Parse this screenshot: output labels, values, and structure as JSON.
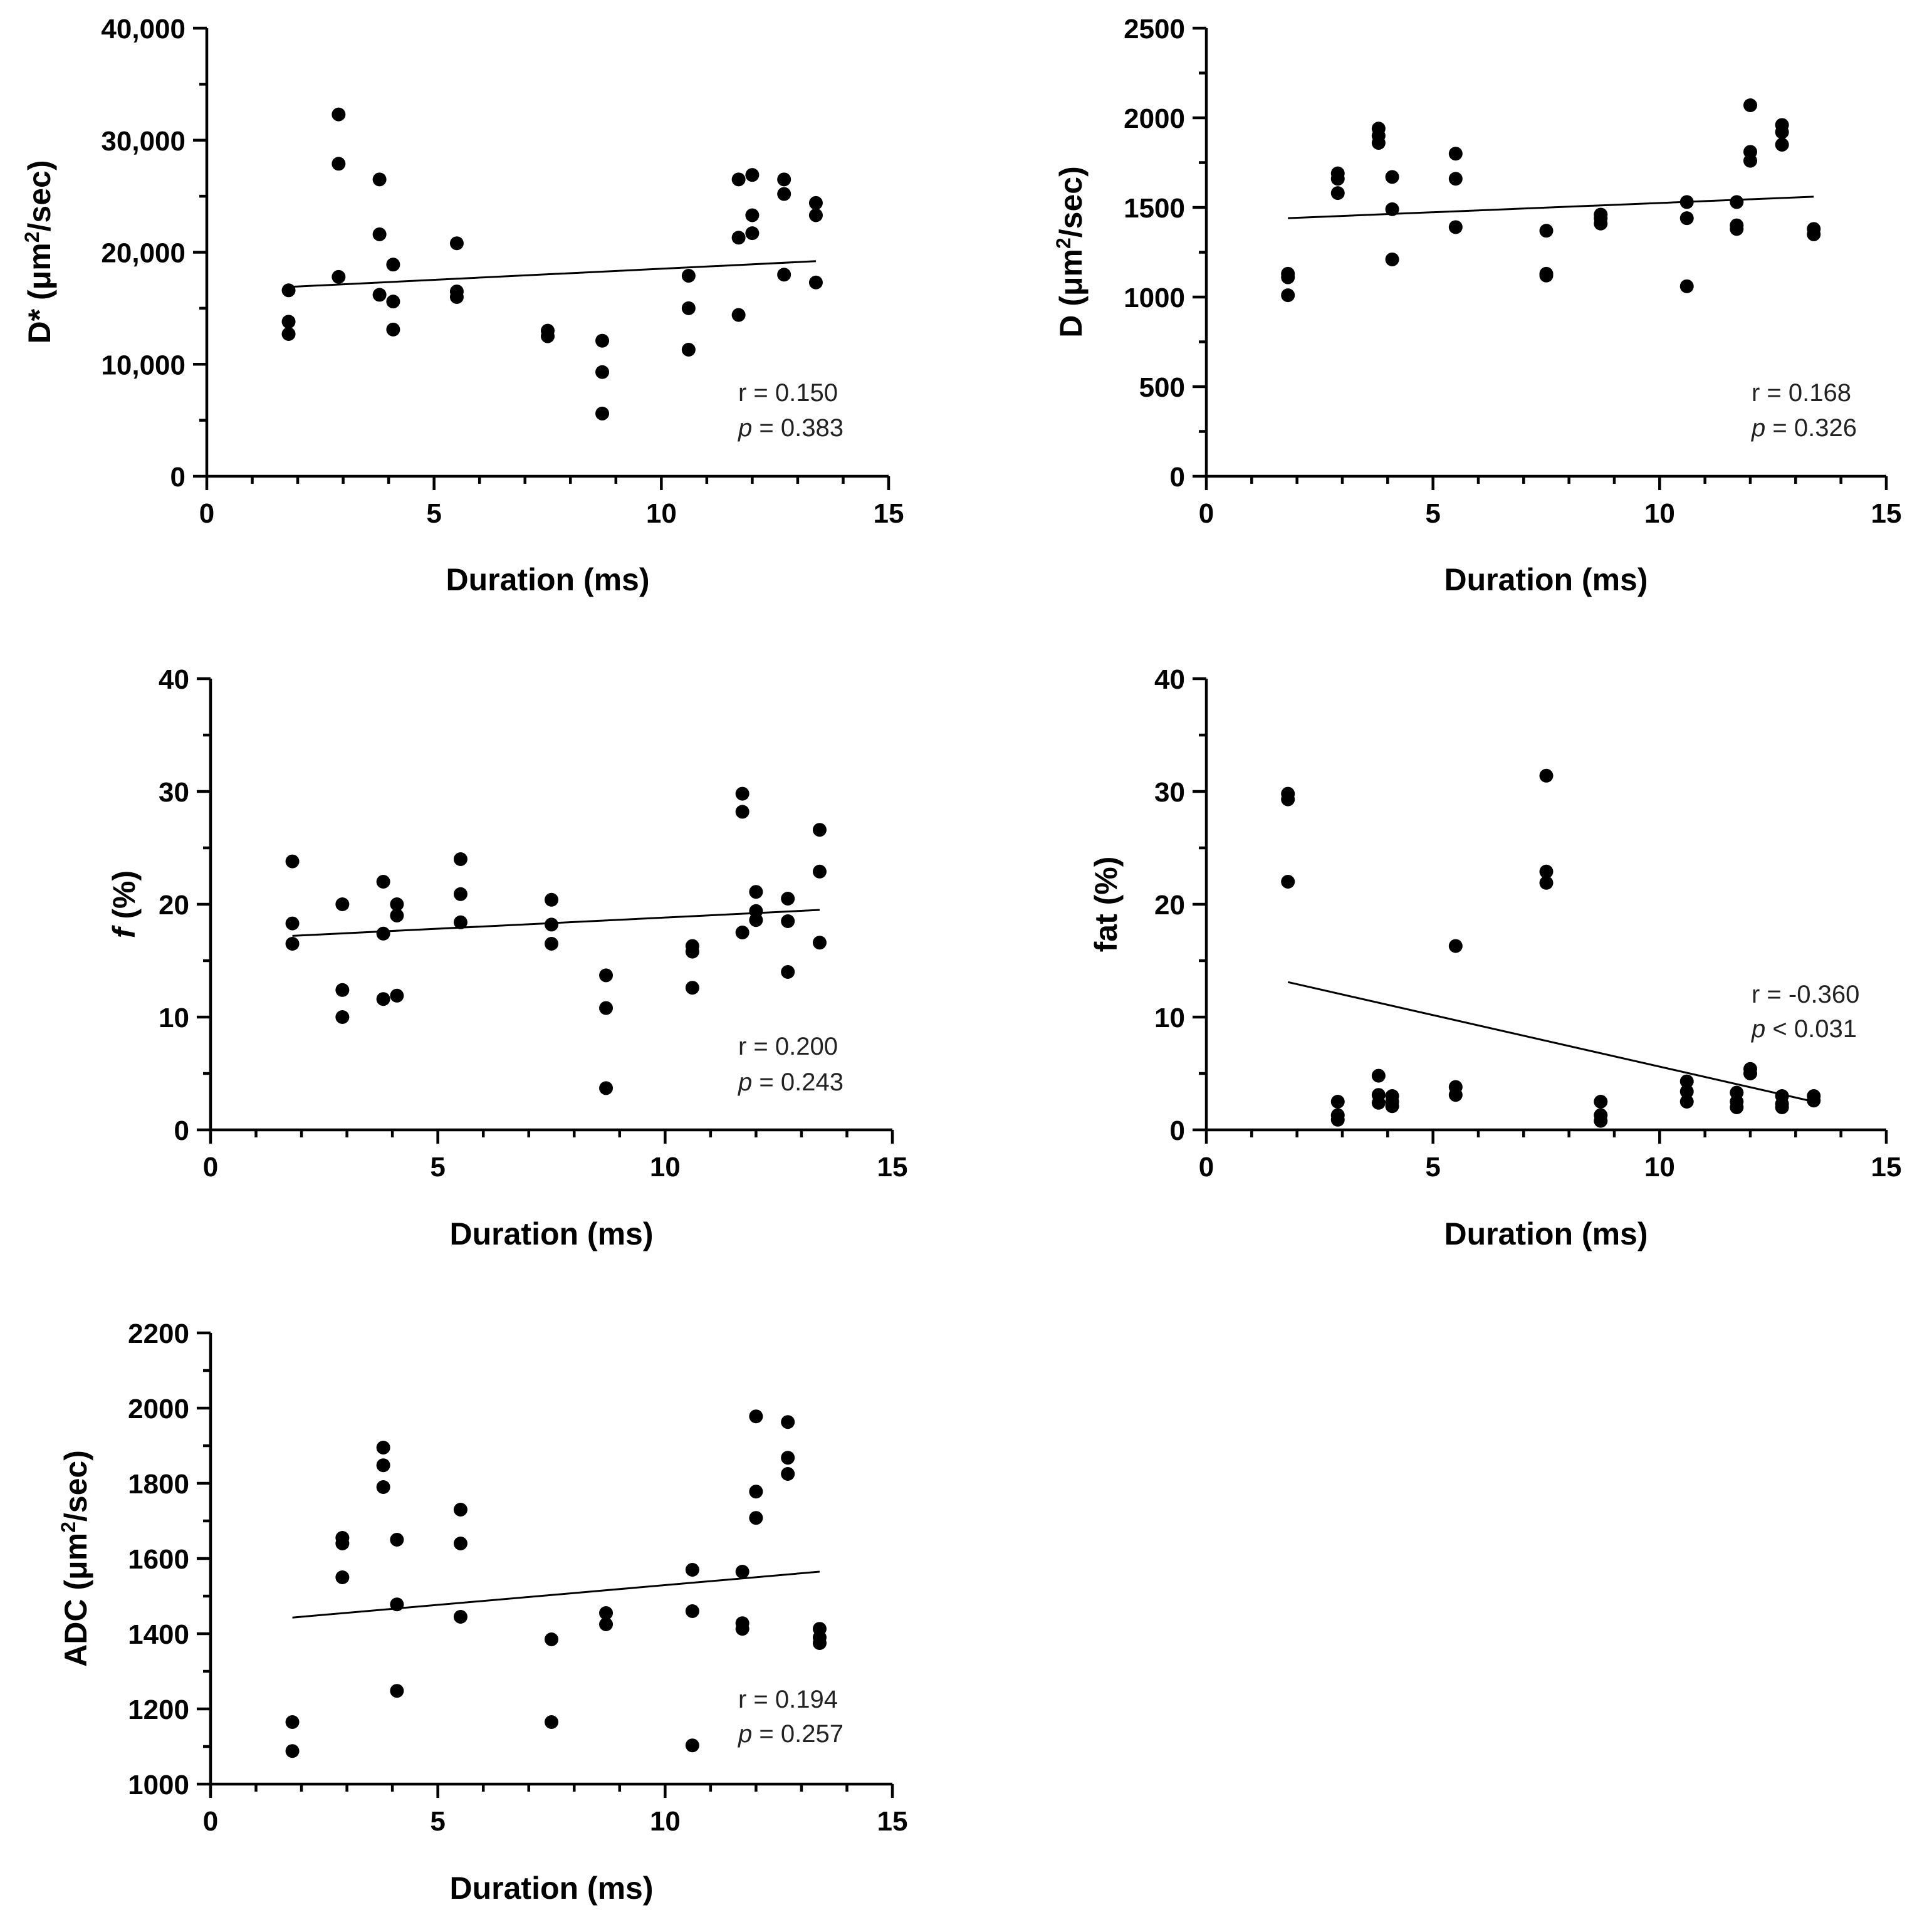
{
  "figure": {
    "background": "#ffffff",
    "ink": "#000000"
  },
  "chart_data": [
    {
      "type": "scatter",
      "xlabel": "Duration (ms)",
      "ylabel_main": "D* (μm",
      "ylabel_sup": "2",
      "ylabel_tail": "/sec)",
      "xlim": [
        0,
        15
      ],
      "ylim": [
        0,
        40000
      ],
      "xticks": [
        0,
        5,
        10,
        15
      ],
      "xtick_labels": [
        "0",
        "5",
        "10",
        "15"
      ],
      "yticks": [
        0,
        10000,
        20000,
        30000,
        40000
      ],
      "ytick_labels": [
        "0",
        "10,000",
        "20,000",
        "30,000",
        "40,000"
      ],
      "stat_r": "r = 0.150",
      "stat_p_symbol": "p",
      "stat_p_rest": " = 0.383",
      "fit": {
        "x": [
          1.8,
          13.4
        ],
        "y": [
          16900,
          19200
        ]
      },
      "points": [
        [
          1.8,
          16600
        ],
        [
          1.8,
          13800
        ],
        [
          1.8,
          12700
        ],
        [
          2.9,
          32300
        ],
        [
          2.9,
          27900
        ],
        [
          2.9,
          17800
        ],
        [
          3.8,
          26500
        ],
        [
          3.8,
          21600
        ],
        [
          3.8,
          16200
        ],
        [
          4.1,
          18900
        ],
        [
          4.1,
          15600
        ],
        [
          4.1,
          13100
        ],
        [
          5.5,
          20800
        ],
        [
          5.5,
          16500
        ],
        [
          5.5,
          16000
        ],
        [
          7.5,
          13000
        ],
        [
          7.5,
          12500
        ],
        [
          8.7,
          12100
        ],
        [
          8.7,
          9300
        ],
        [
          8.7,
          5600
        ],
        [
          10.6,
          17900
        ],
        [
          10.6,
          15000
        ],
        [
          10.6,
          11300
        ],
        [
          11.7,
          26500
        ],
        [
          11.7,
          21300
        ],
        [
          11.7,
          14400
        ],
        [
          12.0,
          26900
        ],
        [
          12.0,
          23300
        ],
        [
          12.0,
          21700
        ],
        [
          12.7,
          26500
        ],
        [
          12.7,
          25200
        ],
        [
          12.7,
          18000
        ],
        [
          13.4,
          24400
        ],
        [
          13.4,
          23300
        ],
        [
          13.4,
          17300
        ]
      ]
    },
    {
      "type": "scatter",
      "xlabel": "Duration (ms)",
      "ylabel_main": "D (μm",
      "ylabel_sup": "2",
      "ylabel_tail": "/sec)",
      "xlim": [
        0,
        15
      ],
      "ylim": [
        0,
        2500
      ],
      "xticks": [
        0,
        5,
        10,
        15
      ],
      "xtick_labels": [
        "0",
        "5",
        "10",
        "15"
      ],
      "yticks": [
        0,
        500,
        1000,
        1500,
        2000,
        2500
      ],
      "ytick_labels": [
        "0",
        "500",
        "1000",
        "1500",
        "2000",
        "2500"
      ],
      "stat_r": "r = 0.168",
      "stat_p_symbol": "p",
      "stat_p_rest": " = 0.326",
      "fit": {
        "x": [
          1.8,
          13.4
        ],
        "y": [
          1440,
          1560
        ]
      },
      "points": [
        [
          1.8,
          1130
        ],
        [
          1.8,
          1110
        ],
        [
          1.8,
          1010
        ],
        [
          2.9,
          1690
        ],
        [
          2.9,
          1660
        ],
        [
          2.9,
          1580
        ],
        [
          3.8,
          1940
        ],
        [
          3.8,
          1900
        ],
        [
          3.8,
          1860
        ],
        [
          4.1,
          1670
        ],
        [
          4.1,
          1490
        ],
        [
          4.1,
          1210
        ],
        [
          5.5,
          1800
        ],
        [
          5.5,
          1660
        ],
        [
          5.5,
          1390
        ],
        [
          7.5,
          1370
        ],
        [
          7.5,
          1130
        ],
        [
          7.5,
          1120
        ],
        [
          8.7,
          1460
        ],
        [
          8.7,
          1440
        ],
        [
          8.7,
          1410
        ],
        [
          10.6,
          1530
        ],
        [
          10.6,
          1440
        ],
        [
          10.6,
          1060
        ],
        [
          11.7,
          1530
        ],
        [
          11.7,
          1400
        ],
        [
          11.7,
          1380
        ],
        [
          12.0,
          2070
        ],
        [
          12.0,
          1810
        ],
        [
          12.0,
          1760
        ],
        [
          12.7,
          1960
        ],
        [
          12.7,
          1920
        ],
        [
          12.7,
          1850
        ],
        [
          13.4,
          1380
        ],
        [
          13.4,
          1350
        ]
      ]
    },
    {
      "type": "scatter",
      "xlabel": "Duration (ms)",
      "ylabel_main": "f",
      "ylabel_sup": "",
      "ylabel_tail": " (%)",
      "ylabel_main_italic": true,
      "xlim": [
        0,
        15
      ],
      "ylim": [
        0,
        40
      ],
      "xticks": [
        0,
        5,
        10,
        15
      ],
      "xtick_labels": [
        "0",
        "5",
        "10",
        "15"
      ],
      "yticks": [
        0,
        10,
        20,
        30,
        40
      ],
      "ytick_labels": [
        "0",
        "10",
        "20",
        "30",
        "40"
      ],
      "stat_r": "r = 0.200",
      "stat_p_symbol": "p",
      "stat_p_rest": " = 0.243",
      "fit": {
        "x": [
          1.8,
          13.4
        ],
        "y": [
          17.2,
          19.5
        ]
      },
      "points": [
        [
          1.8,
          23.8
        ],
        [
          1.8,
          18.3
        ],
        [
          1.8,
          16.5
        ],
        [
          2.9,
          20.0
        ],
        [
          2.9,
          12.4
        ],
        [
          2.9,
          10.0
        ],
        [
          3.8,
          22.0
        ],
        [
          3.8,
          17.4
        ],
        [
          3.8,
          11.6
        ],
        [
          4.1,
          20.0
        ],
        [
          4.1,
          19.0
        ],
        [
          4.1,
          11.9
        ],
        [
          5.5,
          24.0
        ],
        [
          5.5,
          20.9
        ],
        [
          5.5,
          18.4
        ],
        [
          7.5,
          20.4
        ],
        [
          7.5,
          18.2
        ],
        [
          7.5,
          16.5
        ],
        [
          8.7,
          13.7
        ],
        [
          8.7,
          10.8
        ],
        [
          8.7,
          3.7
        ],
        [
          10.6,
          16.3
        ],
        [
          10.6,
          15.8
        ],
        [
          10.6,
          12.6
        ],
        [
          11.7,
          29.8
        ],
        [
          11.7,
          28.2
        ],
        [
          11.7,
          17.5
        ],
        [
          12.0,
          21.1
        ],
        [
          12.0,
          19.4
        ],
        [
          12.0,
          18.6
        ],
        [
          12.7,
          20.5
        ],
        [
          12.7,
          18.5
        ],
        [
          12.7,
          14.0
        ],
        [
          13.4,
          26.6
        ],
        [
          13.4,
          22.9
        ],
        [
          13.4,
          16.6
        ]
      ]
    },
    {
      "type": "scatter",
      "xlabel": "Duration (ms)",
      "ylabel_main": "fat (%)",
      "ylabel_sup": "",
      "ylabel_tail": "",
      "xlim": [
        0,
        15
      ],
      "ylim": [
        0,
        40
      ],
      "xticks": [
        0,
        5,
        10,
        15
      ],
      "xtick_labels": [
        "0",
        "5",
        "10",
        "15"
      ],
      "yticks": [
        0,
        10,
        20,
        30,
        40
      ],
      "ytick_labels": [
        "0",
        "10",
        "20",
        "30",
        "40"
      ],
      "stat_r": "r = -0.360",
      "stat_p_symbol": "p",
      "stat_p_rest": " < 0.031",
      "fit": {
        "x": [
          1.8,
          13.4
        ],
        "y": [
          13.1,
          2.5
        ]
      },
      "points": [
        [
          1.8,
          29.8
        ],
        [
          1.8,
          29.3
        ],
        [
          1.8,
          22.0
        ],
        [
          2.9,
          2.5
        ],
        [
          2.9,
          1.3
        ],
        [
          2.9,
          0.9
        ],
        [
          3.8,
          4.8
        ],
        [
          3.8,
          3.1
        ],
        [
          3.8,
          2.4
        ],
        [
          4.1,
          3.0
        ],
        [
          4.1,
          2.5
        ],
        [
          4.1,
          2.1
        ],
        [
          5.5,
          16.3
        ],
        [
          5.5,
          3.8
        ],
        [
          5.5,
          3.1
        ],
        [
          7.5,
          31.4
        ],
        [
          7.5,
          22.9
        ],
        [
          7.5,
          21.9
        ],
        [
          8.7,
          2.5
        ],
        [
          8.7,
          1.3
        ],
        [
          8.7,
          0.8
        ],
        [
          10.6,
          4.3
        ],
        [
          10.6,
          3.4
        ],
        [
          10.6,
          2.5
        ],
        [
          11.7,
          3.3
        ],
        [
          11.7,
          2.5
        ],
        [
          11.7,
          2.0
        ],
        [
          12.0,
          5.4
        ],
        [
          12.0,
          5.0
        ],
        [
          12.7,
          3.0
        ],
        [
          12.7,
          2.3
        ],
        [
          12.7,
          2.0
        ],
        [
          13.4,
          3.0
        ],
        [
          13.4,
          2.6
        ]
      ]
    },
    {
      "type": "scatter",
      "xlabel": "Duration (ms)",
      "ylabel_main": "ADC (μm",
      "ylabel_sup": "2",
      "ylabel_tail": "/sec)",
      "xlim": [
        0,
        15
      ],
      "ylim": [
        1000,
        2200
      ],
      "xticks": [
        0,
        5,
        10,
        15
      ],
      "xtick_labels": [
        "0",
        "5",
        "10",
        "15"
      ],
      "yticks": [
        1000,
        1200,
        1400,
        1600,
        1800,
        2000,
        2200
      ],
      "ytick_labels": [
        "1000",
        "1200",
        "1400",
        "1600",
        "1800",
        "2000",
        "2200"
      ],
      "stat_r": "r = 0.194",
      "stat_p_symbol": "p",
      "stat_p_rest": " = 0.257",
      "fit": {
        "x": [
          1.8,
          13.4
        ],
        "y": [
          1443,
          1565
        ]
      },
      "points": [
        [
          1.8,
          1165
        ],
        [
          1.8,
          1088
        ],
        [
          2.9,
          1655
        ],
        [
          2.9,
          1640
        ],
        [
          2.9,
          1550
        ],
        [
          3.8,
          1895
        ],
        [
          3.8,
          1848
        ],
        [
          3.8,
          1790
        ],
        [
          4.1,
          1650
        ],
        [
          4.1,
          1478
        ],
        [
          4.1,
          1248
        ],
        [
          5.5,
          1730
        ],
        [
          5.5,
          1640
        ],
        [
          5.5,
          1445
        ],
        [
          7.5,
          1385
        ],
        [
          7.5,
          1165
        ],
        [
          8.7,
          1455
        ],
        [
          8.7,
          1425
        ],
        [
          10.6,
          1570
        ],
        [
          10.6,
          1460
        ],
        [
          10.6,
          1103
        ],
        [
          11.7,
          1565
        ],
        [
          11.7,
          1428
        ],
        [
          11.7,
          1413
        ],
        [
          12.0,
          1978
        ],
        [
          12.0,
          1778
        ],
        [
          12.0,
          1708
        ],
        [
          12.7,
          1963
        ],
        [
          12.7,
          1868
        ],
        [
          12.7,
          1825
        ],
        [
          13.4,
          1413
        ],
        [
          13.4,
          1390
        ],
        [
          13.4,
          1375
        ]
      ]
    }
  ]
}
